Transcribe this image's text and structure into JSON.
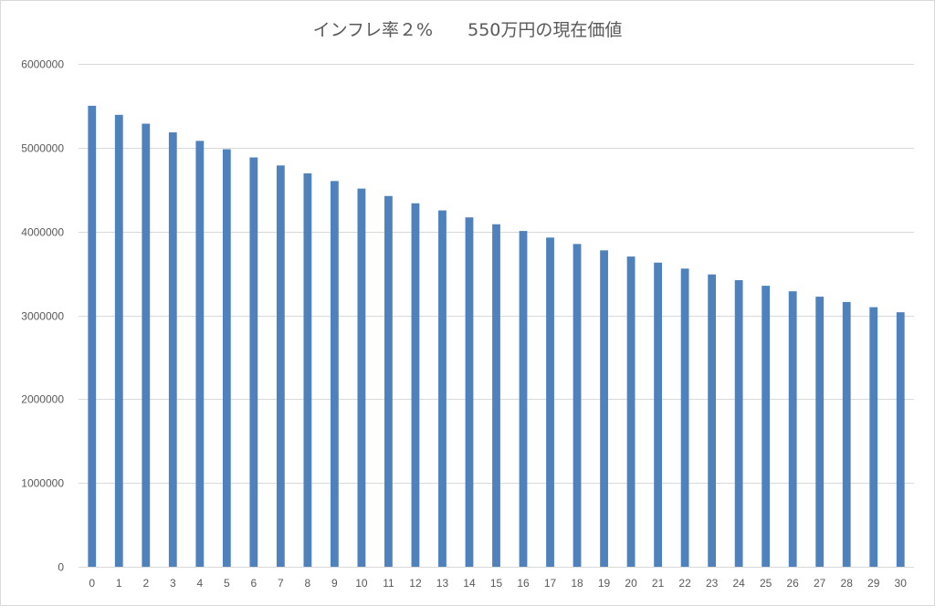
{
  "chart_data": {
    "type": "bar",
    "title": "インフレ率２%　　550万円の現在価値",
    "xlabel": "",
    "ylabel": "",
    "ylim": [
      0,
      6000000
    ],
    "yticks": [
      0,
      1000000,
      2000000,
      3000000,
      4000000,
      5000000,
      6000000
    ],
    "ytick_labels": [
      "0",
      "1000000",
      "2000000",
      "3000000",
      "4000000",
      "5000000",
      "6000000"
    ],
    "grid": true,
    "legend": "none",
    "bar_color": "#4f81bd",
    "grid_color": "#d9d9d9",
    "categories": [
      "0",
      "1",
      "2",
      "3",
      "4",
      "5",
      "6",
      "7",
      "8",
      "9",
      "10",
      "11",
      "12",
      "13",
      "14",
      "15",
      "16",
      "17",
      "18",
      "19",
      "20",
      "21",
      "22",
      "23",
      "24",
      "25",
      "26",
      "27",
      "28",
      "29",
      "30"
    ],
    "values": [
      5500000,
      5392157,
      5286428,
      5182773,
      5081150,
      4981520,
      4883844,
      4788082,
      4694198,
      4602155,
      4511917,
      4423448,
      4336714,
      4251680,
      4168314,
      4086582,
      4006453,
      3927896,
      3850878,
      3775370,
      3701344,
      3628768,
      3557616,
      3487859,
      3419469,
      3352421,
      3286687,
      3222242,
      3159061,
      3097119,
      3036391
    ]
  }
}
